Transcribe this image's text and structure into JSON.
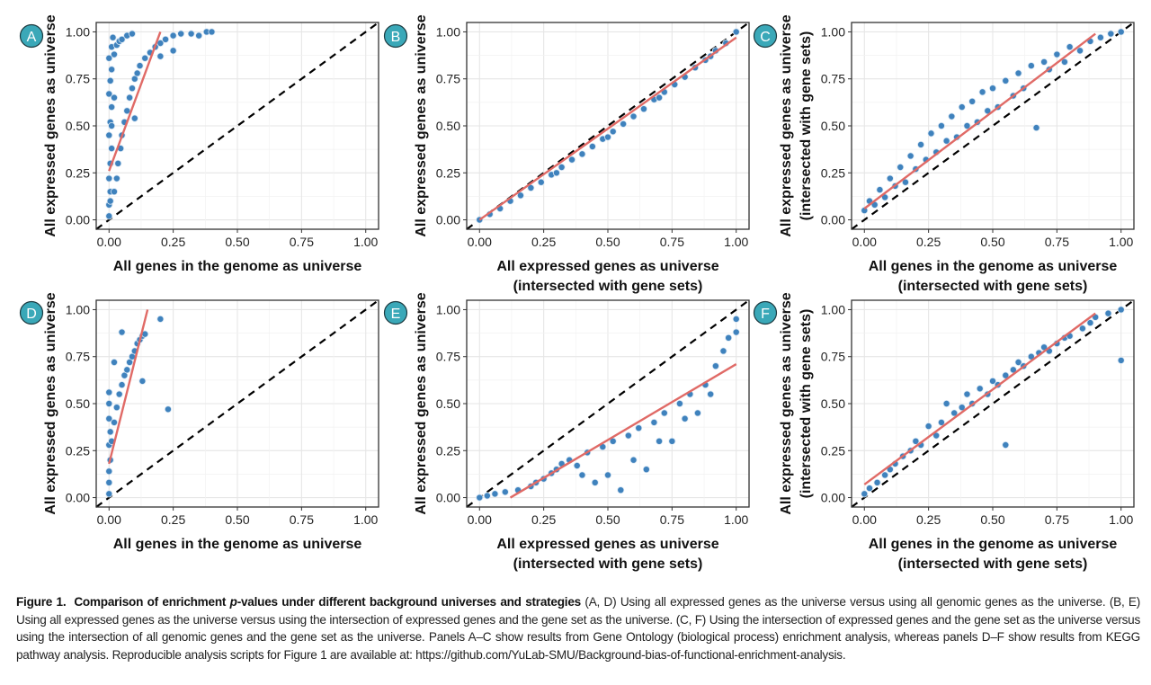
{
  "chart_data": [
    {
      "type": "scatter",
      "panel": "A",
      "xlabel": [
        "All genes in the genome as universe"
      ],
      "ylabel": [
        "All expressed genes as universe"
      ],
      "xlim": [
        -0.05,
        1.05
      ],
      "ylim": [
        -0.05,
        1.05
      ],
      "xticks": [
        "0.00",
        "0.25",
        "0.50",
        "0.75",
        "1.00"
      ],
      "yticks": [
        "0.00",
        "0.25",
        "0.50",
        "0.75",
        "1.00"
      ],
      "fit_line": [
        [
          0,
          0.26
        ],
        [
          0.2,
          1.0
        ]
      ],
      "diagonal": [
        [
          -0.05,
          -0.05
        ],
        [
          1.05,
          1.05
        ]
      ],
      "points": [
        [
          0,
          0.02
        ],
        [
          0,
          0.08
        ],
        [
          0.005,
          0.15
        ],
        [
          0,
          0.22
        ],
        [
          0.005,
          0.3
        ],
        [
          0.01,
          0.38
        ],
        [
          0,
          0.45
        ],
        [
          0.005,
          0.52
        ],
        [
          0.01,
          0.6
        ],
        [
          0,
          0.67
        ],
        [
          0.005,
          0.74
        ],
        [
          0.01,
          0.8
        ],
        [
          0,
          0.86
        ],
        [
          0.01,
          0.92
        ],
        [
          0.015,
          0.97
        ],
        [
          0.02,
          0.88
        ],
        [
          0.03,
          0.93
        ],
        [
          0.04,
          0.95
        ],
        [
          0.05,
          0.96
        ],
        [
          0.07,
          0.98
        ],
        [
          0.09,
          0.99
        ],
        [
          0.02,
          0.15
        ],
        [
          0.03,
          0.22
        ],
        [
          0.035,
          0.3
        ],
        [
          0.045,
          0.38
        ],
        [
          0.05,
          0.45
        ],
        [
          0.06,
          0.52
        ],
        [
          0.07,
          0.58
        ],
        [
          0.08,
          0.65
        ],
        [
          0.09,
          0.7
        ],
        [
          0.1,
          0.75
        ],
        [
          0.11,
          0.78
        ],
        [
          0.12,
          0.82
        ],
        [
          0.14,
          0.86
        ],
        [
          0.16,
          0.89
        ],
        [
          0.18,
          0.92
        ],
        [
          0.2,
          0.94
        ],
        [
          0.22,
          0.96
        ],
        [
          0.25,
          0.98
        ],
        [
          0.28,
          0.99
        ],
        [
          0.32,
          0.99
        ],
        [
          0.35,
          0.98
        ],
        [
          0.38,
          1
        ],
        [
          0.4,
          1
        ],
        [
          0.1,
          0.54
        ],
        [
          0.2,
          0.87
        ],
        [
          0.25,
          0.9
        ],
        [
          0.01,
          0.5
        ],
        [
          0.005,
          0.1
        ],
        [
          0.02,
          0.65
        ]
      ]
    },
    {
      "type": "scatter",
      "panel": "B",
      "xlabel": [
        "All expressed genes as universe",
        "(intersected with gene sets)"
      ],
      "ylabel": [
        "All expressed genes as universe"
      ],
      "xlim": [
        -0.05,
        1.05
      ],
      "ylim": [
        -0.05,
        1.05
      ],
      "xticks": [
        "0.00",
        "0.25",
        "0.50",
        "0.75",
        "1.00"
      ],
      "yticks": [
        "0.00",
        "0.25",
        "0.50",
        "0.75",
        "1.00"
      ],
      "fit_line": [
        [
          0,
          0
        ],
        [
          1,
          0.97
        ]
      ],
      "diagonal": [
        [
          -0.05,
          -0.05
        ],
        [
          1.05,
          1.05
        ]
      ],
      "points": [
        [
          0,
          0
        ],
        [
          0.04,
          0.03
        ],
        [
          0.08,
          0.06
        ],
        [
          0.12,
          0.1
        ],
        [
          0.16,
          0.13
        ],
        [
          0.2,
          0.17
        ],
        [
          0.24,
          0.2
        ],
        [
          0.28,
          0.24
        ],
        [
          0.32,
          0.28
        ],
        [
          0.36,
          0.32
        ],
        [
          0.4,
          0.35
        ],
        [
          0.44,
          0.39
        ],
        [
          0.48,
          0.43
        ],
        [
          0.52,
          0.47
        ],
        [
          0.56,
          0.51
        ],
        [
          0.6,
          0.55
        ],
        [
          0.64,
          0.59
        ],
        [
          0.68,
          0.64
        ],
        [
          0.72,
          0.68
        ],
        [
          0.76,
          0.72
        ],
        [
          0.8,
          0.76
        ],
        [
          0.84,
          0.81
        ],
        [
          0.88,
          0.85
        ],
        [
          0.92,
          0.9
        ],
        [
          0.96,
          0.94
        ],
        [
          1,
          1
        ],
        [
          0.3,
          0.25
        ],
        [
          0.5,
          0.44
        ],
        [
          0.7,
          0.65
        ],
        [
          0.9,
          0.87
        ]
      ]
    },
    {
      "type": "scatter",
      "panel": "C",
      "xlabel": [
        "All genes in the genome as universe",
        "(intersected with gene sets)"
      ],
      "ylabel": [
        "All expressed genes as universe",
        "(intersected with gene sets)"
      ],
      "xlim": [
        -0.05,
        1.05
      ],
      "ylim": [
        -0.05,
        1.05
      ],
      "xticks": [
        "0.00",
        "0.25",
        "0.50",
        "0.75",
        "1.00"
      ],
      "yticks": [
        "0.00",
        "0.25",
        "0.50",
        "0.75",
        "1.00"
      ],
      "fit_line": [
        [
          0,
          0.06
        ],
        [
          0.9,
          0.99
        ]
      ],
      "diagonal": [
        [
          -0.05,
          -0.05
        ],
        [
          1.05,
          1.05
        ]
      ],
      "points": [
        [
          0,
          0.05
        ],
        [
          0.02,
          0.1
        ],
        [
          0.04,
          0.08
        ],
        [
          0.06,
          0.16
        ],
        [
          0.08,
          0.12
        ],
        [
          0.1,
          0.22
        ],
        [
          0.12,
          0.18
        ],
        [
          0.14,
          0.28
        ],
        [
          0.16,
          0.2
        ],
        [
          0.18,
          0.34
        ],
        [
          0.2,
          0.27
        ],
        [
          0.22,
          0.4
        ],
        [
          0.24,
          0.32
        ],
        [
          0.26,
          0.46
        ],
        [
          0.28,
          0.36
        ],
        [
          0.3,
          0.5
        ],
        [
          0.32,
          0.42
        ],
        [
          0.34,
          0.55
        ],
        [
          0.36,
          0.44
        ],
        [
          0.38,
          0.6
        ],
        [
          0.4,
          0.5
        ],
        [
          0.42,
          0.63
        ],
        [
          0.44,
          0.52
        ],
        [
          0.46,
          0.68
        ],
        [
          0.48,
          0.58
        ],
        [
          0.5,
          0.7
        ],
        [
          0.52,
          0.6
        ],
        [
          0.55,
          0.74
        ],
        [
          0.58,
          0.66
        ],
        [
          0.6,
          0.78
        ],
        [
          0.62,
          0.7
        ],
        [
          0.65,
          0.82
        ],
        [
          0.67,
          0.49
        ],
        [
          0.7,
          0.84
        ],
        [
          0.72,
          0.8
        ],
        [
          0.75,
          0.88
        ],
        [
          0.78,
          0.84
        ],
        [
          0.8,
          0.92
        ],
        [
          0.84,
          0.9
        ],
        [
          0.88,
          0.95
        ],
        [
          0.92,
          0.97
        ],
        [
          0.96,
          0.99
        ],
        [
          1,
          1
        ]
      ]
    },
    {
      "type": "scatter",
      "panel": "D",
      "xlabel": [
        "All genes in the genome as universe"
      ],
      "ylabel": [
        "All expressed genes as universe"
      ],
      "xlim": [
        -0.05,
        1.05
      ],
      "ylim": [
        -0.05,
        1.05
      ],
      "xticks": [
        "0.00",
        "0.25",
        "0.50",
        "0.75",
        "1.00"
      ],
      "yticks": [
        "0.00",
        "0.25",
        "0.50",
        "0.75",
        "1.00"
      ],
      "fit_line": [
        [
          0,
          0.18
        ],
        [
          0.15,
          1.0
        ]
      ],
      "diagonal": [
        [
          -0.05,
          -0.05
        ],
        [
          1.05,
          1.05
        ]
      ],
      "points": [
        [
          0,
          0.02
        ],
        [
          0,
          0.08
        ],
        [
          0,
          0.14
        ],
        [
          0.005,
          0.2
        ],
        [
          0,
          0.28
        ],
        [
          0.005,
          0.35
        ],
        [
          0,
          0.42
        ],
        [
          0,
          0.5
        ],
        [
          0,
          0.56
        ],
        [
          0.01,
          0.3
        ],
        [
          0.02,
          0.4
        ],
        [
          0.03,
          0.48
        ],
        [
          0.04,
          0.55
        ],
        [
          0.05,
          0.6
        ],
        [
          0.06,
          0.65
        ],
        [
          0.07,
          0.68
        ],
        [
          0.08,
          0.72
        ],
        [
          0.09,
          0.75
        ],
        [
          0.1,
          0.78
        ],
        [
          0.11,
          0.82
        ],
        [
          0.12,
          0.84
        ],
        [
          0.13,
          0.86
        ],
        [
          0.14,
          0.87
        ],
        [
          0.05,
          0.88
        ],
        [
          0.02,
          0.72
        ],
        [
          0.13,
          0.62
        ],
        [
          0.2,
          0.95
        ],
        [
          0.23,
          0.47
        ]
      ]
    },
    {
      "type": "scatter",
      "panel": "E",
      "xlabel": [
        "All expressed genes as universe",
        "(intersected with gene sets)"
      ],
      "ylabel": [
        "All expressed genes as universe"
      ],
      "xlim": [
        -0.05,
        1.05
      ],
      "ylim": [
        -0.05,
        1.05
      ],
      "xticks": [
        "0.00",
        "0.25",
        "0.50",
        "0.75",
        "1.00"
      ],
      "yticks": [
        "0.00",
        "0.25",
        "0.50",
        "0.75",
        "1.00"
      ],
      "fit_line": [
        [
          0.12,
          0
        ],
        [
          1,
          0.71
        ]
      ],
      "diagonal": [
        [
          -0.05,
          -0.05
        ],
        [
          1.05,
          1.05
        ]
      ],
      "points": [
        [
          0,
          0
        ],
        [
          0.03,
          0.01
        ],
        [
          0.06,
          0.02
        ],
        [
          0.1,
          0.03
        ],
        [
          0.15,
          0.04
        ],
        [
          0.2,
          0.06
        ],
        [
          0.22,
          0.08
        ],
        [
          0.25,
          0.1
        ],
        [
          0.28,
          0.13
        ],
        [
          0.3,
          0.15
        ],
        [
          0.32,
          0.18
        ],
        [
          0.35,
          0.2
        ],
        [
          0.38,
          0.17
        ],
        [
          0.4,
          0.12
        ],
        [
          0.42,
          0.24
        ],
        [
          0.45,
          0.08
        ],
        [
          0.48,
          0.27
        ],
        [
          0.5,
          0.12
        ],
        [
          0.52,
          0.3
        ],
        [
          0.55,
          0.04
        ],
        [
          0.58,
          0.33
        ],
        [
          0.6,
          0.2
        ],
        [
          0.62,
          0.37
        ],
        [
          0.65,
          0.15
        ],
        [
          0.68,
          0.4
        ],
        [
          0.7,
          0.3
        ],
        [
          0.72,
          0.45
        ],
        [
          0.75,
          0.3
        ],
        [
          0.78,
          0.5
        ],
        [
          0.8,
          0.42
        ],
        [
          0.82,
          0.55
        ],
        [
          0.85,
          0.45
        ],
        [
          0.88,
          0.6
        ],
        [
          0.9,
          0.55
        ],
        [
          0.92,
          0.7
        ],
        [
          0.95,
          0.78
        ],
        [
          0.97,
          0.85
        ],
        [
          1,
          0.88
        ],
        [
          1,
          0.95
        ]
      ]
    },
    {
      "type": "scatter",
      "panel": "F",
      "xlabel": [
        "All genes in the genome as universe",
        "(intersected with gene sets)"
      ],
      "ylabel": [
        "All expressed genes as universe",
        "(intersected with gene sets)"
      ],
      "xlim": [
        -0.05,
        1.05
      ],
      "ylim": [
        -0.05,
        1.05
      ],
      "xticks": [
        "0.00",
        "0.25",
        "0.50",
        "0.75",
        "1.00"
      ],
      "yticks": [
        "0.00",
        "0.25",
        "0.50",
        "0.75",
        "1.00"
      ],
      "fit_line": [
        [
          0,
          0.07
        ],
        [
          0.9,
          0.98
        ]
      ],
      "diagonal": [
        [
          -0.05,
          -0.05
        ],
        [
          1.05,
          1.05
        ]
      ],
      "points": [
        [
          0,
          0.02
        ],
        [
          0.02,
          0.05
        ],
        [
          0.05,
          0.08
        ],
        [
          0.08,
          0.12
        ],
        [
          0.1,
          0.15
        ],
        [
          0.12,
          0.18
        ],
        [
          0.15,
          0.22
        ],
        [
          0.18,
          0.25
        ],
        [
          0.2,
          0.3
        ],
        [
          0.22,
          0.28
        ],
        [
          0.25,
          0.38
        ],
        [
          0.28,
          0.33
        ],
        [
          0.3,
          0.4
        ],
        [
          0.32,
          0.5
        ],
        [
          0.35,
          0.45
        ],
        [
          0.38,
          0.48
        ],
        [
          0.4,
          0.55
        ],
        [
          0.42,
          0.5
        ],
        [
          0.45,
          0.58
        ],
        [
          0.48,
          0.55
        ],
        [
          0.5,
          0.62
        ],
        [
          0.52,
          0.6
        ],
        [
          0.55,
          0.65
        ],
        [
          0.55,
          0.28
        ],
        [
          0.58,
          0.68
        ],
        [
          0.6,
          0.72
        ],
        [
          0.62,
          0.7
        ],
        [
          0.65,
          0.75
        ],
        [
          0.68,
          0.77
        ],
        [
          0.7,
          0.8
        ],
        [
          0.72,
          0.78
        ],
        [
          0.75,
          0.82
        ],
        [
          0.78,
          0.85
        ],
        [
          0.8,
          0.86
        ],
        [
          0.85,
          0.9
        ],
        [
          0.88,
          0.93
        ],
        [
          0.9,
          0.96
        ],
        [
          0.95,
          0.98
        ],
        [
          1,
          1
        ],
        [
          1,
          0.73
        ]
      ]
    }
  ],
  "colors": {
    "point": "#3f82bd",
    "fit": "#e06a66",
    "badge": "#3aa8b8"
  },
  "caption": {
    "label": "Figure 1.",
    "title": "Comparison of enrichment",
    "title_italic": "p",
    "title_rest": "-values under different background universes and strategies",
    "body": "(A, D) Using all expressed genes as the universe versus using all genomic genes as the universe. (B, E) Using all expressed genes as the universe versus using the intersection of expressed genes and the gene set as the universe. (C, F) Using the intersection of expressed genes and the gene set as the universe versus using the intersection of all genomic genes and the gene set as the universe. Panels A–C show results from Gene Ontology (biological process) enrichment analysis, whereas panels D–F show results from KEGG pathway analysis. Reproducible analysis scripts for Figure 1 are available at: https://github.com/YuLab-SMU/Background-bias-of-functional-enrichment-analysis."
  }
}
